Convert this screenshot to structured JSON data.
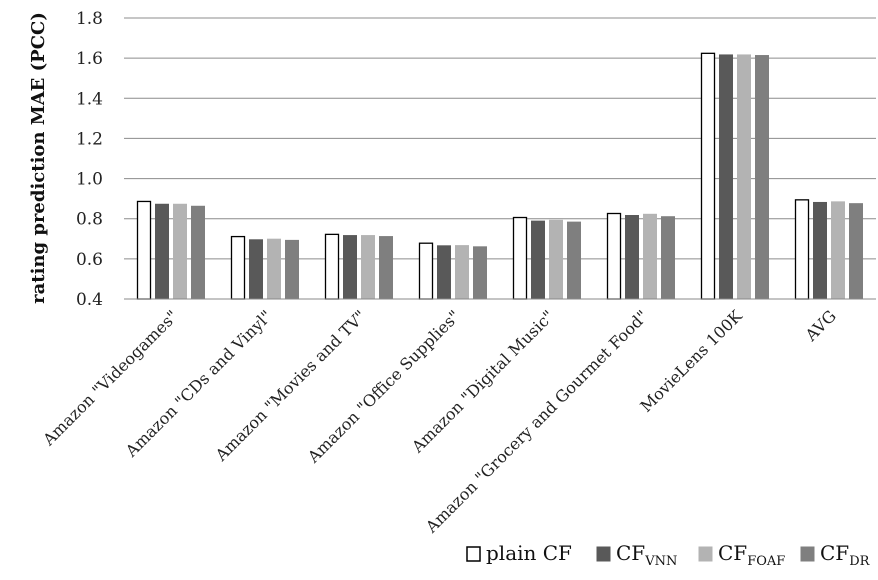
{
  "chart_data": {
    "type": "bar",
    "ylabel": "rating prediction MAE (PCC)",
    "ylim": [
      0.4,
      1.8
    ],
    "yticks": [
      "0.4",
      "0.6",
      "0.8",
      "1.0",
      "1.2",
      "1.4",
      "1.6",
      "1.8"
    ],
    "grid": true,
    "legend_position": "bottom",
    "categories": [
      "Amazon \"Videogames\"",
      "Amazon \"CDs and Vinyl\"",
      "Amazon \"Movies and TV\"",
      "Amazon \"Office Supplies\"",
      "Amazon \"Digital Music\"",
      "Amazon \"Grocery and Gourmet Food\"",
      "MovieLens 100K",
      "AVG"
    ],
    "series": [
      {
        "name": "plain CF",
        "label_main": "plain CF",
        "label_sub": "",
        "color": "#ffffff",
        "stroke": "#000000",
        "values": [
          0.886,
          0.711,
          0.722,
          0.678,
          0.806,
          0.826,
          1.624,
          0.894
        ]
      },
      {
        "name": "CF_VNN",
        "label_main": "CF",
        "label_sub": "VNN",
        "color": "#595959",
        "stroke": "#595959",
        "values": [
          0.872,
          0.695,
          0.716,
          0.665,
          0.788,
          0.816,
          1.616,
          0.881
        ]
      },
      {
        "name": "CF_FOAF",
        "label_main": "CF",
        "label_sub": "FOAF",
        "color": "#b3b3b3",
        "stroke": "#b3b3b3",
        "values": [
          0.872,
          0.698,
          0.716,
          0.666,
          0.792,
          0.822,
          1.616,
          0.884
        ]
      },
      {
        "name": "CF_DR",
        "label_main": "CF",
        "label_sub": "DR",
        "color": "#7f7f7f",
        "stroke": "#7f7f7f",
        "values": [
          0.862,
          0.692,
          0.711,
          0.66,
          0.783,
          0.81,
          1.613,
          0.875
        ]
      }
    ]
  }
}
